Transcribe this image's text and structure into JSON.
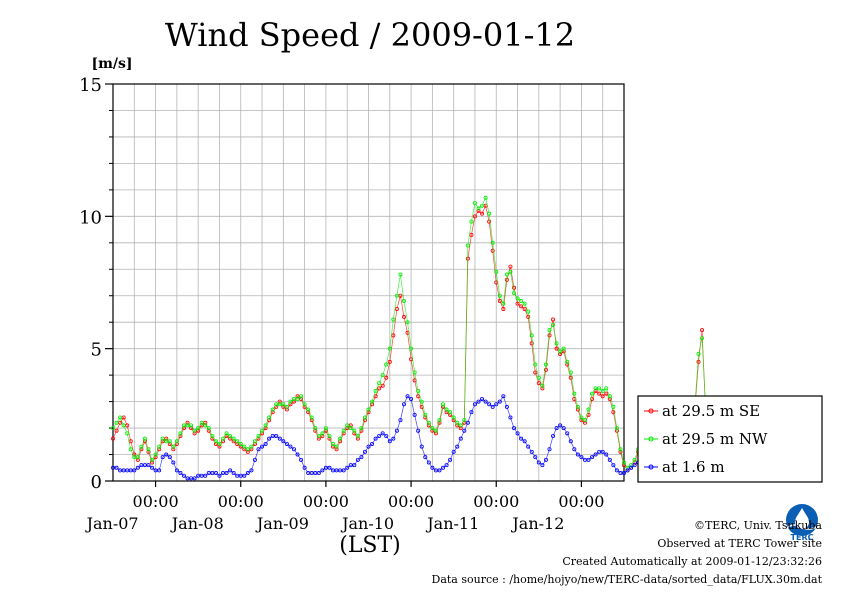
{
  "chart_data": {
    "type": "line",
    "title": "Wind Speed / 2009-01-12",
    "ylabel": "[m/s]",
    "xlabel": "(LST)",
    "ylim": [
      0,
      15
    ],
    "yticks": [
      "0",
      "5",
      "10",
      "15"
    ],
    "x_range": [
      "2009-01-06 12:00",
      "2009-01-12 12:00"
    ],
    "x_time_labels": [
      "00:00",
      "00:00",
      "00:00",
      "00:00",
      "00:00",
      "00:00"
    ],
    "x_date_labels": [
      "Jan-07",
      "Jan-08",
      "Jan-09",
      "Jan-10",
      "Jan-11",
      "Jan-12"
    ],
    "grid": true,
    "legend_position": "right",
    "sample_interval_hours": 1,
    "series": [
      {
        "name": "at 29.5 m SE",
        "color": "#ff0000",
        "values": [
          1.6,
          1.9,
          2.2,
          2.4,
          2.1,
          1.5,
          1.0,
          0.8,
          1.2,
          1.5,
          1.1,
          0.7,
          0.9,
          1.2,
          1.5,
          1.6,
          1.4,
          1.2,
          1.4,
          1.7,
          2.0,
          2.2,
          2.0,
          1.8,
          1.9,
          2.1,
          2.2,
          1.9,
          1.6,
          1.4,
          1.3,
          1.5,
          1.7,
          1.6,
          1.5,
          1.4,
          1.3,
          1.2,
          1.1,
          1.2,
          1.4,
          1.6,
          1.8,
          2.0,
          2.3,
          2.6,
          2.8,
          3.0,
          2.8,
          2.7,
          2.9,
          3.0,
          3.2,
          3.1,
          2.8,
          2.6,
          2.3,
          1.9,
          1.6,
          1.7,
          1.9,
          1.6,
          1.3,
          1.2,
          1.5,
          1.8,
          2.0,
          2.1,
          1.8,
          1.6,
          1.9,
          2.3,
          2.6,
          2.9,
          3.2,
          3.5,
          3.6,
          3.9,
          4.5,
          5.5,
          6.5,
          7.0,
          6.2,
          5.6,
          4.6,
          3.8,
          3.2,
          2.8,
          2.4,
          2.1,
          1.9,
          1.8,
          2.2,
          2.8,
          2.6,
          2.5,
          2.3,
          2.1,
          2.0,
          2.2,
          8.4,
          9.3,
          10.0,
          10.2,
          10.1,
          10.4,
          9.8,
          8.7,
          7.5,
          6.8,
          6.5,
          7.6,
          8.1,
          7.3,
          6.7,
          6.6,
          6.5,
          6.2,
          5.2,
          4.1,
          3.7,
          3.5,
          4.2,
          5.5,
          6.1,
          5.0,
          4.8,
          4.9,
          4.4,
          3.9,
          3.1,
          2.7,
          2.3,
          2.2,
          2.5,
          3.1,
          3.4,
          3.3,
          3.2,
          3.3,
          3.1,
          2.6,
          1.9,
          1.1,
          0.6,
          0.4,
          0.5,
          0.7,
          1.1,
          1.6,
          2.0,
          2.3,
          2.6,
          2.2,
          1.9,
          1.6,
          1.3,
          1.2,
          1.5,
          1.7,
          1.8,
          2.0,
          2.2,
          2.4,
          2.8,
          4.5,
          5.7,
          2.6,
          1.5,
          1.2,
          1.1,
          1.2,
          1.9
        ]
      },
      {
        "name": "at 29.5 m NW",
        "color": "#00ee00",
        "values": [
          2.0,
          2.2,
          2.4,
          2.1,
          1.8,
          1.2,
          0.9,
          0.9,
          1.3,
          1.6,
          1.2,
          0.8,
          1.0,
          1.3,
          1.6,
          1.5,
          1.5,
          1.3,
          1.5,
          1.8,
          2.1,
          2.1,
          2.1,
          1.9,
          2.0,
          2.2,
          2.1,
          2.0,
          1.7,
          1.5,
          1.4,
          1.6,
          1.8,
          1.7,
          1.6,
          1.5,
          1.4,
          1.3,
          1.2,
          1.3,
          1.5,
          1.7,
          1.9,
          2.1,
          2.4,
          2.7,
          2.9,
          2.9,
          2.9,
          2.8,
          3.0,
          3.1,
          3.1,
          3.2,
          2.9,
          2.7,
          2.4,
          2.0,
          1.7,
          1.8,
          2.0,
          1.7,
          1.4,
          1.3,
          1.6,
          1.9,
          2.1,
          2.0,
          1.9,
          1.7,
          2.0,
          2.4,
          2.7,
          3.0,
          3.4,
          3.7,
          4.0,
          4.4,
          5.0,
          6.1,
          7.0,
          7.8,
          6.8,
          6.0,
          5.0,
          4.1,
          3.4,
          3.0,
          2.5,
          2.2,
          2.0,
          1.9,
          2.3,
          2.9,
          2.7,
          2.6,
          2.4,
          2.2,
          2.1,
          2.3,
          8.9,
          9.8,
          10.5,
          10.3,
          10.4,
          10.7,
          10.1,
          9.0,
          7.9,
          7.0,
          6.7,
          7.8,
          7.9,
          7.1,
          6.9,
          6.8,
          6.7,
          6.4,
          5.5,
          4.4,
          3.9,
          3.6,
          4.4,
          5.7,
          5.9,
          5.2,
          4.9,
          5.0,
          4.5,
          4.1,
          3.3,
          2.8,
          2.4,
          2.3,
          2.7,
          3.3,
          3.5,
          3.5,
          3.4,
          3.5,
          3.2,
          2.8,
          2.0,
          1.2,
          0.7,
          0.5,
          0.6,
          0.8,
          1.2,
          1.7,
          2.1,
          2.4,
          2.5,
          2.3,
          2.0,
          1.7,
          1.4,
          1.3,
          1.6,
          1.8,
          1.9,
          2.1,
          2.3,
          2.5,
          2.9,
          4.8,
          5.4,
          2.8,
          1.6,
          1.3,
          1.2,
          1.3,
          2.0
        ]
      },
      {
        "name": "at 1.6 m",
        "color": "#0000ff",
        "values": [
          0.5,
          0.5,
          0.4,
          0.4,
          0.4,
          0.4,
          0.4,
          0.5,
          0.6,
          0.6,
          0.6,
          0.5,
          0.4,
          0.4,
          0.9,
          1.0,
          0.9,
          0.7,
          0.4,
          0.3,
          0.2,
          0.1,
          0.1,
          0.1,
          0.2,
          0.2,
          0.2,
          0.3,
          0.3,
          0.3,
          0.2,
          0.3,
          0.3,
          0.4,
          0.3,
          0.2,
          0.2,
          0.2,
          0.3,
          0.4,
          0.8,
          1.2,
          1.3,
          1.4,
          1.6,
          1.7,
          1.7,
          1.6,
          1.5,
          1.4,
          1.3,
          1.2,
          1.0,
          0.8,
          0.5,
          0.3,
          0.3,
          0.3,
          0.3,
          0.4,
          0.5,
          0.5,
          0.4,
          0.4,
          0.4,
          0.4,
          0.5,
          0.6,
          0.6,
          0.8,
          0.9,
          1.1,
          1.3,
          1.4,
          1.6,
          1.7,
          1.8,
          1.7,
          1.5,
          1.6,
          1.9,
          2.3,
          2.9,
          3.2,
          3.1,
          2.5,
          1.9,
          1.3,
          0.9,
          0.7,
          0.5,
          0.4,
          0.4,
          0.5,
          0.6,
          0.8,
          1.1,
          1.3,
          1.6,
          1.9,
          2.2,
          2.6,
          2.9,
          3.0,
          3.1,
          3.0,
          2.9,
          2.8,
          2.9,
          3.0,
          3.2,
          2.8,
          2.4,
          2.0,
          1.8,
          1.6,
          1.5,
          1.3,
          1.1,
          0.9,
          0.7,
          0.6,
          0.8,
          1.2,
          1.7,
          2.0,
          2.1,
          2.0,
          1.8,
          1.5,
          1.2,
          1.0,
          0.9,
          0.8,
          0.8,
          0.9,
          1.0,
          1.1,
          1.1,
          1.0,
          0.8,
          0.6,
          0.4,
          0.3,
          0.3,
          0.4,
          0.5,
          0.6,
          0.7,
          0.9,
          1.0,
          1.2,
          1.3,
          1.2,
          1.0,
          0.8,
          0.6,
          0.5,
          0.6,
          0.7,
          0.8,
          0.9,
          1.1,
          1.3,
          1.4,
          1.5,
          1.9,
          2.3,
          1.6,
          0.7,
          0.4,
          0.3,
          0.4,
          0.6
        ]
      }
    ]
  },
  "footer": {
    "credit_line": "©TERC, Univ. Tsukuba",
    "observed_line": "Observed at TERC Tower site",
    "created_line": "Created Automatically at 2009-01-12/23:32:26",
    "datasource_line": "Data source : /home/hojyo/new/TERC-data/sorted_data/FLUX.30m.dat"
  },
  "logo": {
    "text": "TERC",
    "color": "#0a5fb5"
  }
}
